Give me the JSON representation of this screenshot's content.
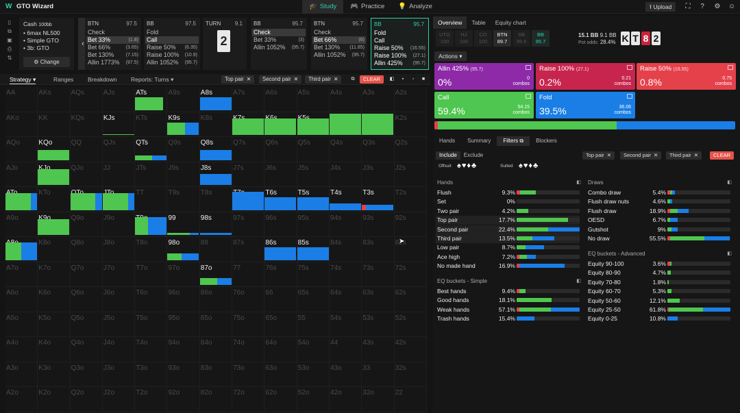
{
  "app": {
    "title": "GTO Wizard",
    "logo_glyph": "W"
  },
  "nav": [
    {
      "label": "Study",
      "icon": "graduation-cap-icon",
      "glyph": "🎓",
      "active": true
    },
    {
      "label": "Practice",
      "icon": "gamepad-icon",
      "glyph": "🎮",
      "active": false
    },
    {
      "label": "Analyze",
      "icon": "lightbulb-icon",
      "glyph": "💡",
      "active": false
    }
  ],
  "topright": {
    "upload": "Upload"
  },
  "left_strip_icons": [
    "doc-icon",
    "copy-icon",
    "save-icon",
    "print-icon",
    "sort-icon"
  ],
  "game": {
    "cash": "Cash",
    "stack": "100bb",
    "format": "6max NL500",
    "solver": "Simple GTO",
    "bet": "3b: GTO",
    "change": "Change"
  },
  "streets": [
    {
      "pos": "BTN",
      "size": "97.5",
      "options": [
        {
          "label": "Check",
          "combos": "",
          "selected": false
        },
        {
          "label": "Bet 33%",
          "combos": "(1.8)",
          "selected": true
        },
        {
          "label": "Bet 66%",
          "combos": "(3.65)",
          "selected": false
        },
        {
          "label": "Bet 130%",
          "combos": "(7.15)",
          "selected": false
        },
        {
          "label": "Allin 1773%",
          "combos": "(97.5)",
          "selected": false
        }
      ]
    },
    {
      "pos": "BB",
      "size": "97.5",
      "options": [
        {
          "label": "Fold",
          "combos": "",
          "selected": false
        },
        {
          "label": "Call",
          "combos": "",
          "selected": true
        },
        {
          "label": "Raise 50%",
          "combos": "(6.35)",
          "selected": false
        },
        {
          "label": "Raise 100%",
          "combos": "(10.9)",
          "selected": false
        },
        {
          "label": "Allin 1052%",
          "combos": "(95.7)",
          "selected": false
        }
      ]
    },
    {
      "pos": "TURN",
      "size": "9.1",
      "card": "2",
      "options": []
    },
    {
      "pos": "BB",
      "size": "95.7",
      "options": [
        {
          "label": "Check",
          "combos": "",
          "selected": true
        },
        {
          "label": "Bet 33%",
          "combos": "(3)",
          "selected": false
        },
        {
          "label": "Allin 1052%",
          "combos": "(95.7)",
          "selected": false
        }
      ]
    },
    {
      "pos": "BTN",
      "size": "95.7",
      "options": [
        {
          "label": "Check",
          "combos": "",
          "selected": false
        },
        {
          "label": "Bet 66%",
          "combos": "(6)",
          "selected": true
        },
        {
          "label": "Bet 130%",
          "combos": "(11.85)",
          "selected": false
        },
        {
          "label": "Allin 1052%",
          "combos": "(95.7)",
          "selected": false
        }
      ]
    },
    {
      "pos": "BB",
      "size": "95.7",
      "active": true,
      "options": [
        {
          "label": "Fold",
          "combos": "",
          "selected": false
        },
        {
          "label": "Call",
          "combos": "",
          "selected": false
        },
        {
          "label": "Raise 50%",
          "combos": "(16.55)",
          "selected": false
        },
        {
          "label": "Raise 100%",
          "combos": "(27.1)",
          "selected": false
        },
        {
          "label": "Allin 425%",
          "combos": "(95.7)",
          "selected": false
        }
      ]
    }
  ],
  "strategy_tabs": [
    "Strategy",
    "Ranges",
    "Breakdown",
    "Reports: Turns"
  ],
  "grid_filters": [
    "Top pair",
    "Second pair",
    "Third pair"
  ],
  "clear": "CLEAR",
  "colors": {
    "allin": "#8e2aa8",
    "raise100": "#c7254e",
    "raise50": "#e5414b",
    "call": "#4fc64f",
    "fold": "#1a7ee6",
    "accent": "#2fd0a8"
  },
  "ranks": [
    "A",
    "K",
    "Q",
    "J",
    "T",
    "9",
    "8",
    "7",
    "6",
    "5",
    "4",
    "3",
    "2"
  ],
  "active_hands": [
    {
      "hand": "ATs",
      "call": 0.88,
      "fold": 0.0,
      "raise": 0.0,
      "height": 0.55
    },
    {
      "hand": "A8s",
      "call": 0.0,
      "fold": 1.0,
      "raise": 0.0,
      "height": 0.55
    },
    {
      "hand": "KJs",
      "call": 0.0,
      "fold": 0.0,
      "raise": 0.0,
      "height": 0.05
    },
    {
      "hand": "K9s",
      "call": 0.55,
      "fold": 0.45,
      "raise": 0.0,
      "height": 0.55
    },
    {
      "hand": "K7s",
      "call": 1.0,
      "fold": 0.0,
      "raise": 0.0,
      "height": 0.72
    },
    {
      "hand": "K6s",
      "call": 1.0,
      "fold": 0.0,
      "raise": 0.0,
      "height": 0.72
    },
    {
      "hand": "K5s",
      "call": 1.0,
      "fold": 0.0,
      "raise": 0.0,
      "height": 0.72
    },
    {
      "hand": "K4s",
      "call": 1.0,
      "fold": 0.0,
      "raise": 0.0,
      "height": 0.95
    },
    {
      "hand": "K3s",
      "call": 1.0,
      "fold": 0.0,
      "raise": 0.0,
      "height": 0.95
    },
    {
      "hand": "KQo",
      "call": 1.0,
      "fold": 0.0,
      "raise": 0.0,
      "height": 0.45
    },
    {
      "hand": "QTs",
      "call": 0.55,
      "fold": 0.45,
      "raise": 0.0,
      "height": 0.2
    },
    {
      "hand": "Q8s",
      "call": 0.0,
      "fold": 1.0,
      "raise": 0.0,
      "height": 0.45
    },
    {
      "hand": "KJo",
      "call": 1.0,
      "fold": 0.0,
      "raise": 0.0,
      "height": 0.7
    },
    {
      "hand": "J8s",
      "call": 0.0,
      "fold": 1.0,
      "raise": 0.0,
      "height": 0.5
    },
    {
      "hand": "ATo",
      "call": 0.8,
      "fold": 0.2,
      "raise": 0.0,
      "height": 0.75
    },
    {
      "hand": "QTo",
      "call": 0.8,
      "fold": 0.2,
      "raise": 0.0,
      "height": 0.75
    },
    {
      "hand": "JTo",
      "call": 0.8,
      "fold": 0.2,
      "raise": 0.0,
      "height": 0.75
    },
    {
      "hand": "T7s",
      "call": 0.0,
      "fold": 1.0,
      "raise": 0.0,
      "height": 0.8
    },
    {
      "hand": "T6s",
      "call": 0.0,
      "fold": 1.0,
      "raise": 0.0,
      "height": 0.55
    },
    {
      "hand": "T5s",
      "call": 0.0,
      "fold": 1.0,
      "raise": 0.0,
      "height": 0.55
    },
    {
      "hand": "T4s",
      "call": 0.0,
      "fold": 1.0,
      "raise": 0.0,
      "height": 0.3
    },
    {
      "hand": "T3s",
      "call": 0.0,
      "fold": 0.88,
      "raise": 0.12,
      "height": 0.22
    },
    {
      "hand": "K9o",
      "call": 1.0,
      "fold": 0.0,
      "raise": 0.0,
      "height": 0.7
    },
    {
      "hand": "T9o",
      "call": 0.4,
      "fold": 0.6,
      "raise": 0.0,
      "height": 0.8
    },
    {
      "hand": "99",
      "call": 0.7,
      "fold": 0.3,
      "raise": 0.0,
      "height": 0.1
    },
    {
      "hand": "98s",
      "call": 0.0,
      "fold": 1.0,
      "raise": 0.0,
      "height": 0.1
    },
    {
      "hand": "A8o",
      "call": 0.5,
      "fold": 0.5,
      "raise": 0.0,
      "height": 0.78
    },
    {
      "hand": "98o",
      "call": 0.45,
      "fold": 0.55,
      "raise": 0.0,
      "height": 0.3
    },
    {
      "hand": "86s",
      "call": 0.0,
      "fold": 1.0,
      "raise": 0.0,
      "height": 0.55
    },
    {
      "hand": "85s",
      "call": 0.0,
      "fold": 1.0,
      "raise": 0.0,
      "height": 0.55
    },
    {
      "hand": "87o",
      "call": 0.55,
      "fold": 0.45,
      "raise": 0.0,
      "height": 0.3
    }
  ],
  "right_tabs": [
    "Overview",
    "Table",
    "Equity chart"
  ],
  "positions": [
    {
      "name": "UTG",
      "stack": "100"
    },
    {
      "name": "HJ",
      "stack": "100"
    },
    {
      "name": "CO",
      "stack": "100"
    },
    {
      "name": "BTN",
      "stack": "89.7",
      "active": true
    },
    {
      "name": "SB",
      "stack": "99.5"
    },
    {
      "name": "BB",
      "stack": "95.7",
      "highlight": true
    }
  ],
  "pot": {
    "total": "15.1 BB",
    "bb": "9.1 BB",
    "odds_label": "Pot odds:",
    "odds": "28.4%"
  },
  "board": [
    {
      "rank": "K",
      "suit": "spades",
      "color": "#e8e8e8",
      "text": "#111"
    },
    {
      "rank": "T",
      "suit": "spades",
      "color": "#e8e8e8",
      "text": "#111"
    },
    {
      "rank": "8",
      "suit": "hearts",
      "color": "#c8233a",
      "text": "#fff"
    },
    {
      "rank": "2",
      "suit": "spades",
      "color": "#e8e8e8",
      "text": "#111"
    }
  ],
  "actions_label": "Actions",
  "actions": [
    {
      "name": "Allin 425%",
      "size": "(95.7)",
      "pct": "0%",
      "combos": "0",
      "color": "#8e2aa8"
    },
    {
      "name": "Raise 100%",
      "size": "(27.1)",
      "pct": "0.2%",
      "combos": "0.21",
      "color": "#c7254e"
    },
    {
      "name": "Raise 50%",
      "size": "(16.55)",
      "pct": "0.8%",
      "combos": "0.75",
      "color": "#e5414b"
    },
    {
      "name": "Call",
      "size": "",
      "pct": "59.4%",
      "combos": "54.15",
      "color": "#4fc64f"
    },
    {
      "name": "Fold",
      "size": "",
      "pct": "39.5%",
      "combos": "36.06",
      "color": "#1a7ee6"
    }
  ],
  "combos_label": "combos",
  "strategy_mix": {
    "raise": 0.011,
    "call": 0.594,
    "fold": 0.395
  },
  "sub_tabs": [
    "Hands",
    "Summary",
    "Filters",
    "Blockers"
  ],
  "include_tabs": [
    "Include",
    "Exclude"
  ],
  "offsuit_label": "Offsuit",
  "suited_label": "Suited",
  "suits": "♠♥♦♣",
  "sections": {
    "hands": "Hands",
    "draws": "Draws",
    "eq_simple": "EQ buckets - Simple",
    "eq_adv": "EQ buckets - Advanced"
  },
  "hands": [
    {
      "name": "Flush",
      "pct": "9.3%",
      "r": 0.05,
      "c": 0.25,
      "f": 0.0
    },
    {
      "name": "Set",
      "pct": "0%",
      "r": 0.0,
      "c": 0.0,
      "f": 0.0
    },
    {
      "name": "Two pair",
      "pct": "4.2%",
      "r": 0.0,
      "c": 0.18,
      "f": 0.0
    },
    {
      "name": "Top pair",
      "pct": "17.7%",
      "r": 0.0,
      "c": 0.82,
      "f": 0.0,
      "hl": true
    },
    {
      "name": "Second pair",
      "pct": "22.4%",
      "r": 0.0,
      "c": 0.5,
      "f": 0.5,
      "hl": true
    },
    {
      "name": "Third pair",
      "pct": "13.5%",
      "r": 0.0,
      "c": 0.25,
      "f": 0.35,
      "hl": true
    },
    {
      "name": "Low pair",
      "pct": "8.7%",
      "r": 0.0,
      "c": 0.14,
      "f": 0.3
    },
    {
      "name": "Ace high",
      "pct": "7.2%",
      "r": 0.04,
      "c": 0.12,
      "f": 0.14
    },
    {
      "name": "No made hand",
      "pct": "16.9%",
      "r": 0.04,
      "c": 0.0,
      "f": 0.72
    }
  ],
  "eq_simple": [
    {
      "name": "Best hands",
      "pct": "9.4%",
      "r": 0.04,
      "c": 0.1,
      "f": 0.0
    },
    {
      "name": "Good hands",
      "pct": "18.1%",
      "r": 0.0,
      "c": 0.55,
      "f": 0.0
    },
    {
      "name": "Weak hands",
      "pct": "57.1%",
      "r": 0.04,
      "c": 0.5,
      "f": 0.46
    },
    {
      "name": "Trash hands",
      "pct": "15.4%",
      "r": 0.0,
      "c": 0.0,
      "f": 0.28
    }
  ],
  "draws": [
    {
      "name": "Combo draw",
      "pct": "5.4%",
      "r": 0.04,
      "c": 0.04,
      "f": 0.04
    },
    {
      "name": "Flush draw nuts",
      "pct": "4.6%",
      "r": 0.0,
      "c": 0.04,
      "f": 0.04
    },
    {
      "name": "Flush draw",
      "pct": "18.9%",
      "r": 0.04,
      "c": 0.12,
      "f": 0.18
    },
    {
      "name": "OESD",
      "pct": "6.7%",
      "r": 0.0,
      "c": 0.04,
      "f": 0.12
    },
    {
      "name": "Gutshot",
      "pct": "9%",
      "r": 0.0,
      "c": 0.06,
      "f": 0.1
    },
    {
      "name": "No draw",
      "pct": "55.5%",
      "r": 0.04,
      "c": 0.55,
      "f": 0.4
    }
  ],
  "eq_adv": [
    {
      "name": "Equity 90-100",
      "pct": "3.6%",
      "r": 0.04,
      "c": 0.03,
      "f": 0.0
    },
    {
      "name": "Equity 80-90",
      "pct": "4.7%",
      "r": 0.0,
      "c": 0.05,
      "f": 0.0
    },
    {
      "name": "Equity 70-80",
      "pct": "1.8%",
      "r": 0.0,
      "c": 0.02,
      "f": 0.0
    },
    {
      "name": "Equity 60-70",
      "pct": "5.3%",
      "r": 0.0,
      "c": 0.06,
      "f": 0.0
    },
    {
      "name": "Equity 50-60",
      "pct": "12.1%",
      "r": 0.0,
      "c": 0.2,
      "f": 0.0
    },
    {
      "name": "Equity 25-50",
      "pct": "61.8%",
      "r": 0.02,
      "c": 0.55,
      "f": 0.43
    },
    {
      "name": "Equity 0-25",
      "pct": "10.8%",
      "r": 0.0,
      "c": 0.0,
      "f": 0.16
    }
  ]
}
